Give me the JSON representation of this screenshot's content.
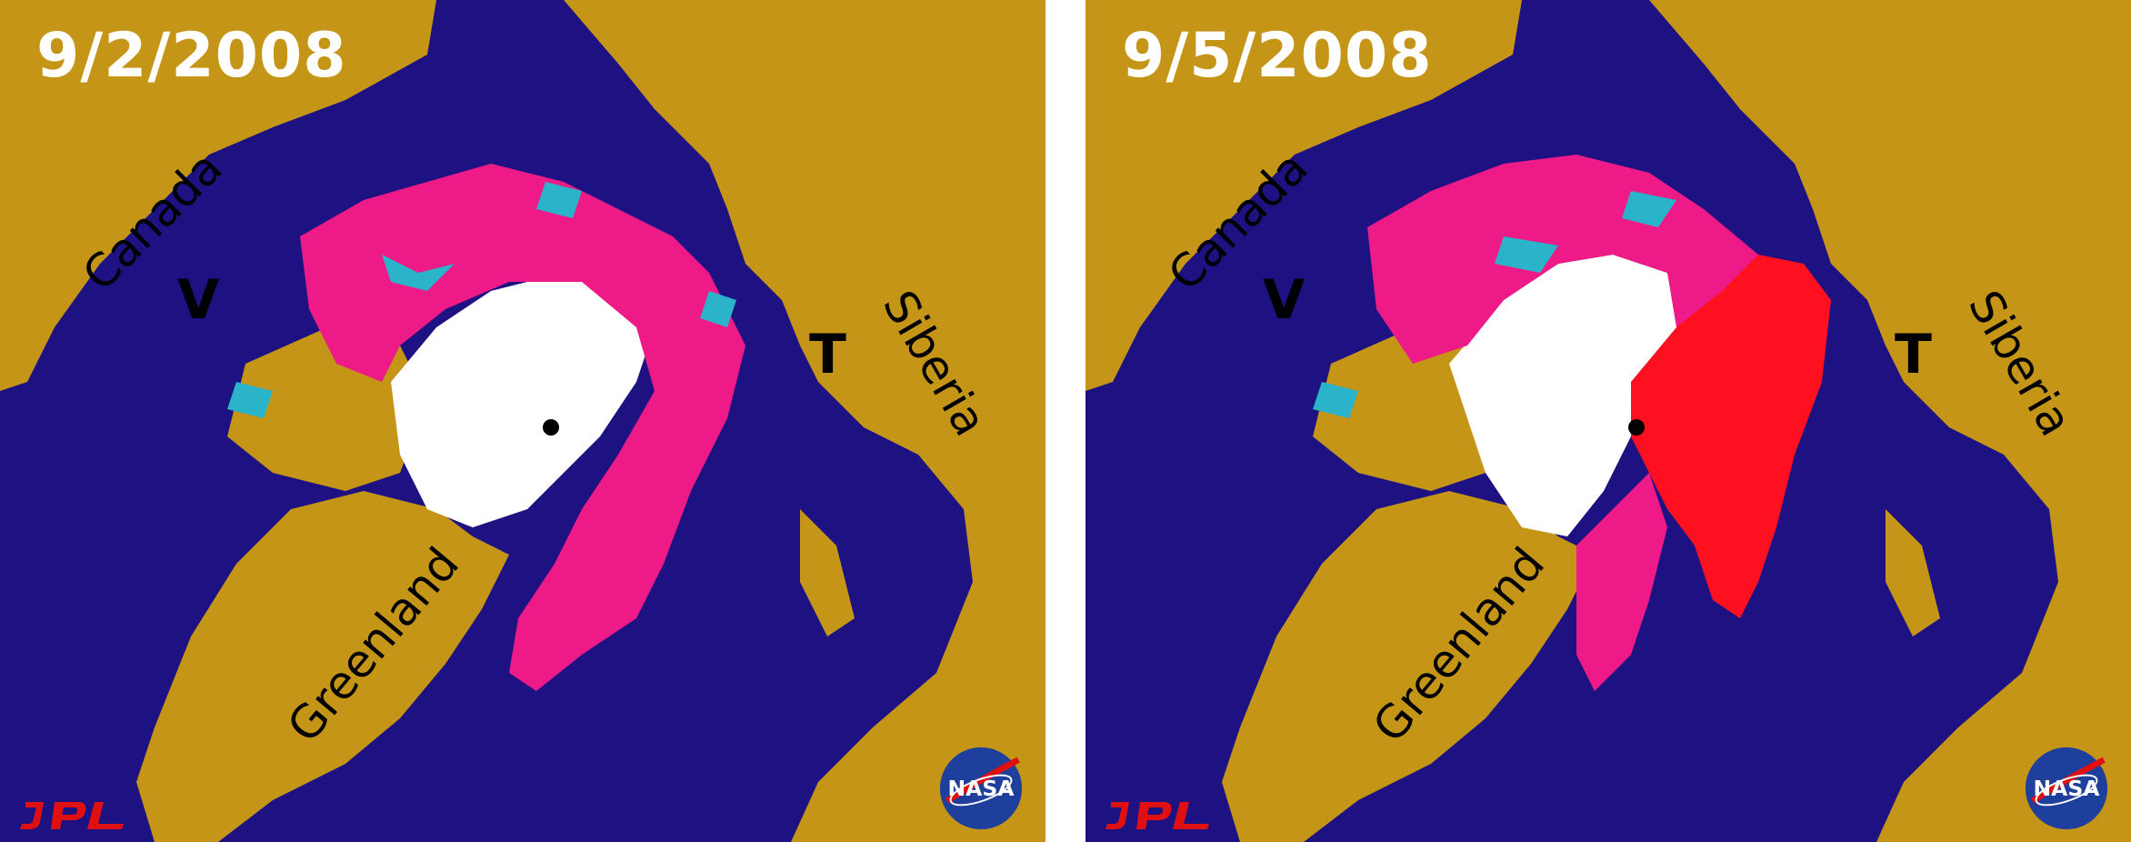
{
  "panels": [
    {
      "date": "9/2/2008",
      "labels": {
        "canada": "Canada",
        "siberia": "Siberia",
        "greenland": "Greenland",
        "marker_v": "V",
        "marker_t": "T"
      },
      "logos": {
        "left": "JPL",
        "right": "NASA"
      }
    },
    {
      "date": "9/5/2008",
      "labels": {
        "canada": "Canada",
        "siberia": "Siberia",
        "greenland": "Greenland",
        "marker_v": "V",
        "marker_t": "T"
      },
      "logos": {
        "left": "JPL",
        "right": "NASA"
      }
    }
  ],
  "colors": {
    "ocean": "#1e1283",
    "land": "#c49516",
    "perennial_ice": "#ffffff",
    "seasonal_ice": "#ee1a88",
    "new_ice_9_5": "#ff1020",
    "mixed_ice": "#2bb3c9",
    "pole_marker": "#000000"
  },
  "icons": [
    "jpl-logo",
    "nasa-logo",
    "north-pole-dot"
  ]
}
